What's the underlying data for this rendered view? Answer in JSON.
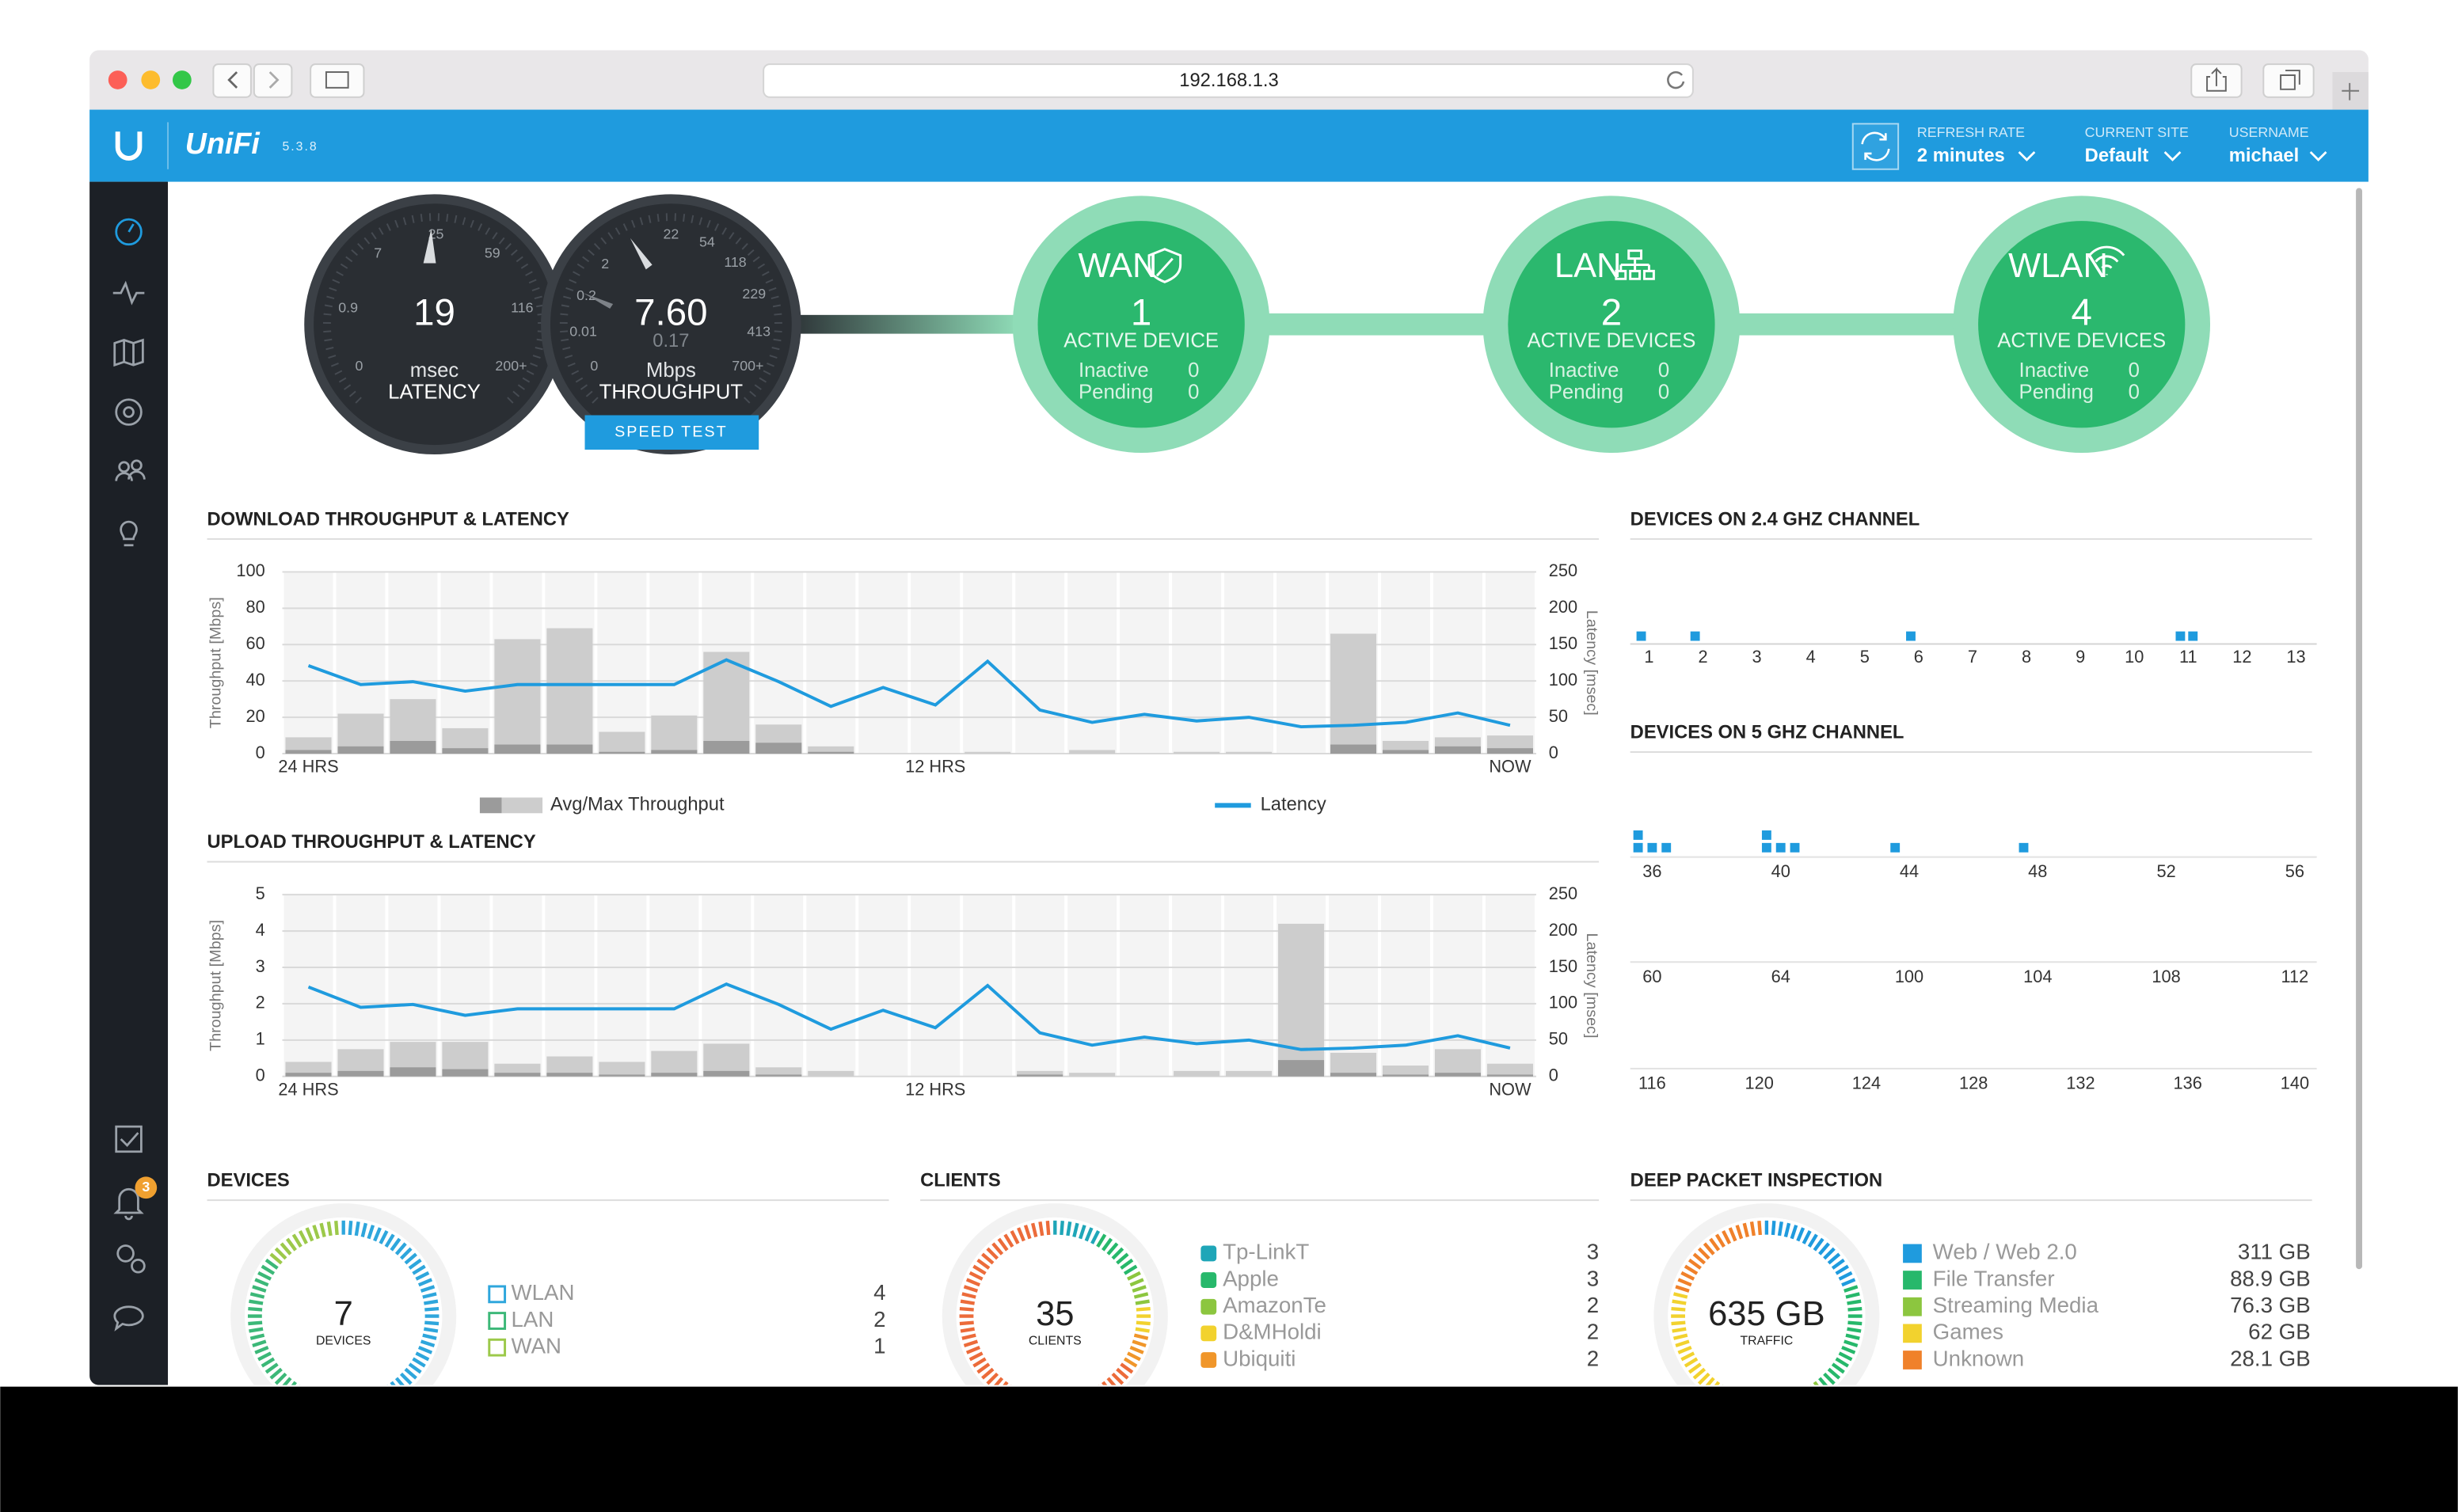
{
  "browser": {
    "url": "192.168.1.3"
  },
  "header": {
    "brand": "UniFi",
    "version": "5.3.8",
    "refresh_rate": {
      "label": "REFRESH RATE",
      "value": "2 minutes"
    },
    "current_site": {
      "label": "CURRENT SITE",
      "value": "Default"
    },
    "username": {
      "label": "USERNAME",
      "value": "michael"
    }
  },
  "sidebar": {
    "alerts_badge": "3"
  },
  "latency_gauge": {
    "value": "19",
    "unit": "msec",
    "label": "LATENCY",
    "scale": [
      "0",
      "0.9",
      "7",
      "25",
      "59",
      "116",
      "200+"
    ]
  },
  "throughput_gauge": {
    "value": "7.60",
    "upload": "0.17",
    "unit": "Mbps",
    "label": "THROUGHPUT",
    "scale": [
      "0",
      "0.01",
      "0.2",
      "2",
      "22",
      "54",
      "118",
      "229",
      "413",
      "700+"
    ],
    "button": "SPEED TEST"
  },
  "network": [
    {
      "name": "WAN",
      "active": "1",
      "active_label": "ACTIVE DEVICE",
      "inactive_label": "Inactive",
      "inactive": "0",
      "pending_label": "Pending",
      "pending": "0"
    },
    {
      "name": "LAN",
      "active": "2",
      "active_label": "ACTIVE DEVICES",
      "inactive_label": "Inactive",
      "inactive": "0",
      "pending_label": "Pending",
      "pending": "0"
    },
    {
      "name": "WLAN",
      "active": "4",
      "active_label": "ACTIVE DEVICES",
      "inactive_label": "Inactive",
      "inactive": "0",
      "pending_label": "Pending",
      "pending": "0"
    }
  ],
  "download_chart": {
    "type": "bar",
    "title": "DOWNLOAD THROUGHPUT & LATENCY",
    "ylabel": "Throughput [Mbps]",
    "y2label": "Latency [msec]",
    "categories": [
      "24 HRS",
      null,
      null,
      null,
      null,
      null,
      null,
      null,
      null,
      null,
      null,
      null,
      "12 HRS",
      null,
      null,
      null,
      null,
      null,
      null,
      null,
      null,
      null,
      null,
      "NOW"
    ],
    "ylim": [
      0,
      100
    ],
    "yticks": [
      0,
      20,
      40,
      60,
      80,
      100
    ],
    "y2lim": [
      0,
      250
    ],
    "y2ticks": [
      0,
      50,
      100,
      150,
      200,
      250
    ],
    "series": [
      {
        "name": "Avg/Max Throughput",
        "type": "bar",
        "color": "#cdcdcd",
        "avg_color": "#9b9b9b",
        "values": [
          9,
          22,
          30,
          14,
          63,
          69,
          12,
          21,
          56,
          16,
          4,
          0,
          0,
          1,
          0,
          2,
          0,
          1,
          1,
          0,
          66,
          7,
          9,
          10
        ],
        "avg": [
          2,
          4,
          7,
          3,
          5,
          5,
          1,
          2,
          7,
          6,
          1,
          0,
          0,
          0,
          0,
          0,
          0,
          0,
          0,
          0,
          5,
          2,
          4,
          3
        ]
      },
      {
        "name": "Latency",
        "type": "line",
        "axis": "y2",
        "color": "#1f9bde",
        "values": [
          121,
          95,
          99,
          86,
          95,
          95,
          95,
          95,
          129,
          99,
          65,
          91,
          67,
          127,
          60,
          43,
          54,
          45,
          50,
          37,
          39,
          43,
          56,
          39
        ]
      }
    ]
  },
  "upload_chart": {
    "type": "bar",
    "title": "UPLOAD THROUGHPUT & LATENCY",
    "ylabel": "Throughput [Mbps]",
    "y2label": "Latency [msec]",
    "categories": [
      "24 HRS",
      null,
      null,
      null,
      null,
      null,
      null,
      null,
      null,
      null,
      null,
      null,
      "12 HRS",
      null,
      null,
      null,
      null,
      null,
      null,
      null,
      null,
      null,
      null,
      "NOW"
    ],
    "ylim": [
      0,
      5
    ],
    "yticks": [
      0,
      1,
      2,
      3,
      4,
      5
    ],
    "y2lim": [
      0,
      250
    ],
    "y2ticks": [
      0,
      50,
      100,
      150,
      200,
      250
    ],
    "series": [
      {
        "type": "bar",
        "color": "#cdcdcd",
        "avg_color": "#9b9b9b",
        "values": [
          0.4,
          0.75,
          0.95,
          0.95,
          0.35,
          0.55,
          0.4,
          0.7,
          0.9,
          0.25,
          0.15,
          0,
          0,
          0,
          0.15,
          0.1,
          0,
          0.15,
          0.15,
          4.2,
          0.65,
          0.3,
          0.75,
          0.35
        ],
        "avg": [
          0.1,
          0.15,
          0.25,
          0.2,
          0.1,
          0.1,
          0.05,
          0.1,
          0.15,
          0.05,
          0,
          0,
          0,
          0,
          0.05,
          0,
          0,
          0,
          0,
          0.45,
          0.1,
          0.05,
          0.1,
          0.05
        ]
      },
      {
        "type": "line",
        "axis": "y2",
        "color": "#1f9bde",
        "values": [
          123,
          95,
          99,
          84,
          93,
          93,
          93,
          93,
          127,
          99,
          65,
          91,
          67,
          125,
          60,
          43,
          54,
          45,
          50,
          37,
          39,
          43,
          56,
          39
        ]
      }
    ]
  },
  "channels_24": {
    "title": "DEVICES ON 2.4 GHZ CHANNEL",
    "color": "#1f9bde",
    "channels": [
      1,
      2,
      3,
      4,
      5,
      6,
      7,
      8,
      9,
      10,
      11,
      12,
      13
    ],
    "devices": [
      1,
      1,
      0,
      0,
      0,
      1,
      0,
      0,
      0,
      0,
      2,
      0,
      0
    ]
  },
  "channels_5": {
    "title": "DEVICES ON 5 GHZ CHANNEL",
    "color": "#1f9bde",
    "rows": [
      {
        "channels": [
          36,
          40,
          44,
          48,
          52,
          56
        ],
        "devices": [
          4,
          4,
          1,
          1,
          0,
          0
        ]
      },
      {
        "channels": [
          60,
          64,
          100,
          104,
          108,
          112
        ],
        "devices": [
          0,
          0,
          0,
          0,
          0,
          0
        ]
      },
      {
        "channels": [
          116,
          120,
          124,
          128,
          132,
          136,
          140
        ],
        "devices": [
          0,
          0,
          0,
          0,
          0,
          0,
          0
        ]
      }
    ]
  },
  "devices": {
    "title": "DEVICES",
    "total": 7,
    "total_label": "DEVICES",
    "items": [
      {
        "name": "WLAN",
        "count": 4,
        "color": "#2ea6dc"
      },
      {
        "name": "LAN",
        "count": 2,
        "color": "#3cb878"
      },
      {
        "name": "WAN",
        "count": 1,
        "color": "#9cc94a"
      }
    ]
  },
  "clients": {
    "title": "CLIENTS",
    "total": 35,
    "total_label": "CLIENTS",
    "items": [
      {
        "name": "Tp-LinkT",
        "count": 3,
        "color": "#1fa6b8"
      },
      {
        "name": "Apple",
        "count": 3,
        "color": "#27b86b"
      },
      {
        "name": "AmazonTe",
        "count": 2,
        "color": "#8cc63f"
      },
      {
        "name": "D&MHoldi",
        "count": 2,
        "color": "#f2d22e"
      },
      {
        "name": "Ubiquiti",
        "count": 2,
        "color": "#f0962a"
      }
    ]
  },
  "dpi": {
    "title": "DEEP PACKET INSPECTION",
    "total": "635 GB",
    "total_label": "TRAFFIC",
    "items": [
      {
        "name": "Web / Web 2.0",
        "amount": "311 GB",
        "color": "#1f9bde"
      },
      {
        "name": "File Transfer",
        "amount": "88.9 GB",
        "color": "#27b86b"
      },
      {
        "name": "Streaming Media",
        "amount": "76.3 GB",
        "color": "#8cc63f"
      },
      {
        "name": "Games",
        "amount": "62 GB",
        "color": "#f2d22e"
      },
      {
        "name": "Unknown",
        "amount": "28.1 GB",
        "color": "#f0812a"
      }
    ]
  }
}
